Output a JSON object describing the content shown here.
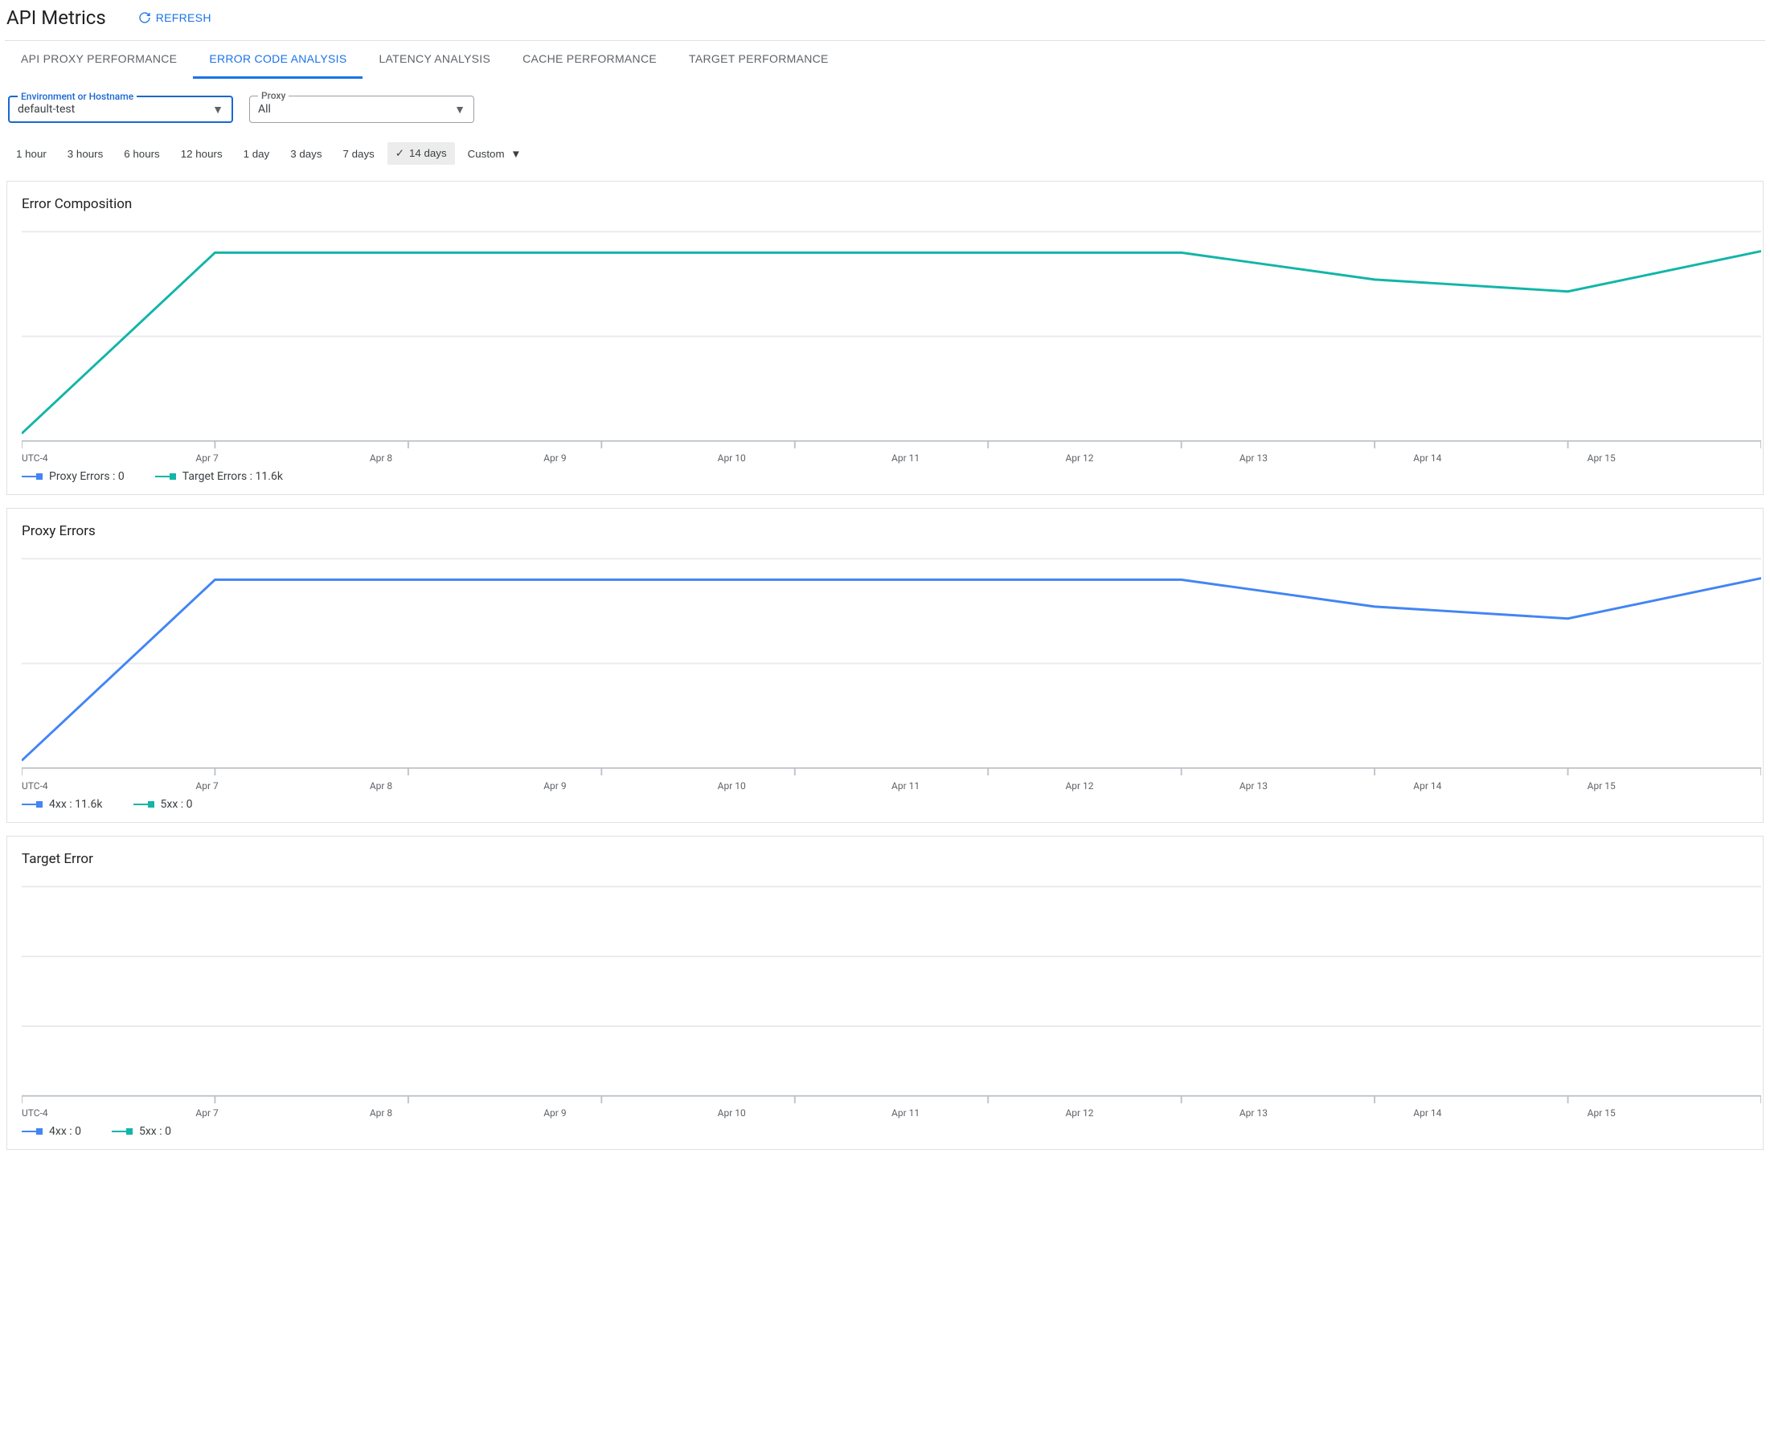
{
  "page": {
    "title": "API Metrics",
    "refresh_label": "REFRESH"
  },
  "tabs": {
    "items": [
      {
        "label": "API PROXY PERFORMANCE",
        "active": false
      },
      {
        "label": "ERROR CODE ANALYSIS",
        "active": true
      },
      {
        "label": "LATENCY ANALYSIS",
        "active": false
      },
      {
        "label": "CACHE PERFORMANCE",
        "active": false
      },
      {
        "label": "TARGET PERFORMANCE",
        "active": false
      }
    ]
  },
  "filters": {
    "env": {
      "label": "Environment or Hostname",
      "value": "default-test",
      "focused": true
    },
    "proxy": {
      "label": "Proxy",
      "value": "All",
      "focused": false
    }
  },
  "time_range": {
    "options": [
      "1 hour",
      "3 hours",
      "6 hours",
      "12 hours",
      "1 day",
      "3 days",
      "7 days",
      "14 days"
    ],
    "selected": "14 days",
    "custom_label": "Custom"
  },
  "colors": {
    "blue": "#1a73e8",
    "blue_line": "#4285f4",
    "teal": "#12b5a8",
    "grid": "#e8eaed",
    "axis": "#bdc1c6",
    "text_muted": "#5f6368"
  },
  "axis": {
    "x_first_label": "UTC-4",
    "x_labels": [
      "Apr 7",
      "Apr 8",
      "Apr 9",
      "Apr 10",
      "Apr 11",
      "Apr 12",
      "Apr 13",
      "Apr 14",
      "Apr 15"
    ]
  },
  "charts": [
    {
      "id": "error-composition",
      "title": "Error Composition",
      "type": "line",
      "ylim": [
        0,
        14000
      ],
      "y_gridlines": [
        0,
        7000,
        14000
      ],
      "show_series": [
        1
      ],
      "series": [
        {
          "name": "Proxy Errors",
          "value_label": "0",
          "color": "#4285f4",
          "points": [
            0,
            0,
            0,
            0,
            0,
            0,
            0,
            0,
            0,
            0
          ]
        },
        {
          "name": "Target Errors",
          "value_label": "11.6k",
          "color": "#12b5a8",
          "points": [
            500,
            12600,
            12600,
            12600,
            12600,
            12600,
            12600,
            10800,
            10000,
            12700
          ]
        }
      ]
    },
    {
      "id": "proxy-errors",
      "title": "Proxy Errors",
      "type": "line",
      "ylim": [
        0,
        14000
      ],
      "y_gridlines": [
        0,
        7000,
        14000
      ],
      "show_series": [
        0
      ],
      "series": [
        {
          "name": "4xx",
          "value_label": "11.6k",
          "color": "#4285f4",
          "points": [
            500,
            12600,
            12600,
            12600,
            12600,
            12600,
            12600,
            10800,
            10000,
            12700
          ]
        },
        {
          "name": "5xx",
          "value_label": "0",
          "color": "#12b5a8",
          "points": [
            0,
            0,
            0,
            0,
            0,
            0,
            0,
            0,
            0,
            0
          ]
        }
      ]
    },
    {
      "id": "target-error",
      "title": "Target Error",
      "type": "line",
      "ylim": [
        0,
        14000
      ],
      "y_gridlines": [
        0,
        4666,
        9333,
        14000
      ],
      "show_series": [],
      "series": [
        {
          "name": "4xx",
          "value_label": "0",
          "color": "#4285f4",
          "points": [
            0,
            0,
            0,
            0,
            0,
            0,
            0,
            0,
            0,
            0
          ]
        },
        {
          "name": "5xx",
          "value_label": "0",
          "color": "#12b5a8",
          "points": [
            0,
            0,
            0,
            0,
            0,
            0,
            0,
            0,
            0,
            0
          ]
        }
      ]
    }
  ]
}
